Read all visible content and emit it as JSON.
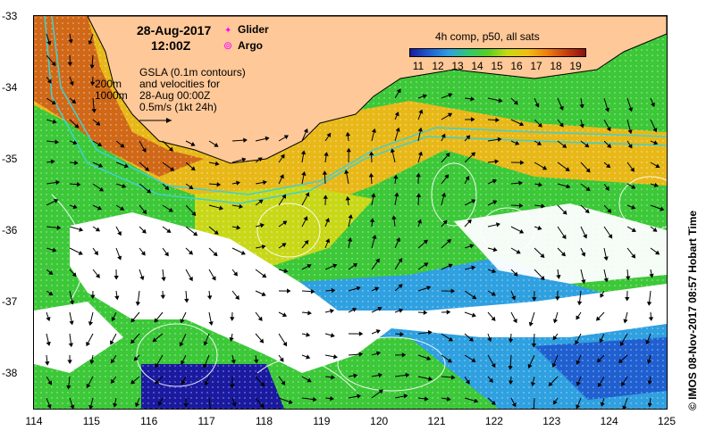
{
  "header": {
    "date": "28-Aug-2017",
    "time": "12:00Z"
  },
  "legend": {
    "glider_label": "Glider",
    "argo_label": "Argo",
    "glider_color": "#ff00ff",
    "argo_color": "#ff00ff"
  },
  "notes": {
    "gsla_line1": "GSLA (0.1m contours)",
    "gsla_line2": "and velocities for",
    "gsla_line3": "28-Aug 00:00Z",
    "gsla_line4": "0.5m/s (1kt 24h)",
    "isobath_200": "200m",
    "isobath_1000": "1000m"
  },
  "colorbar": {
    "title": "4h comp, p50, all sats",
    "labels": [
      "11",
      "12",
      "13",
      "14",
      "15",
      "16",
      "17",
      "18",
      "19"
    ],
    "colors": [
      "#1a1aa0",
      "#1f5fd0",
      "#2fa0e0",
      "#30c870",
      "#58d020",
      "#c8d818",
      "#f0c010",
      "#f08010",
      "#c84010",
      "#8a1010"
    ]
  },
  "axes": {
    "x_ticks": [
      "114",
      "115",
      "116",
      "117",
      "118",
      "119",
      "120",
      "121",
      "122",
      "123",
      "124",
      "125"
    ],
    "y_ticks": [
      "-33",
      "-34",
      "-35",
      "-36",
      "-37",
      "-38"
    ],
    "x_range": [
      114,
      125
    ],
    "y_range": [
      -38.5,
      -33
    ]
  },
  "credit": "© IMOS 08-Nov-2017 08:57 Hobart Time",
  "map": {
    "land_color": "#ffc898",
    "cloud_color": "#ffffff",
    "contour_color": "#ffffff",
    "isobath_color": "#40d0d0"
  }
}
